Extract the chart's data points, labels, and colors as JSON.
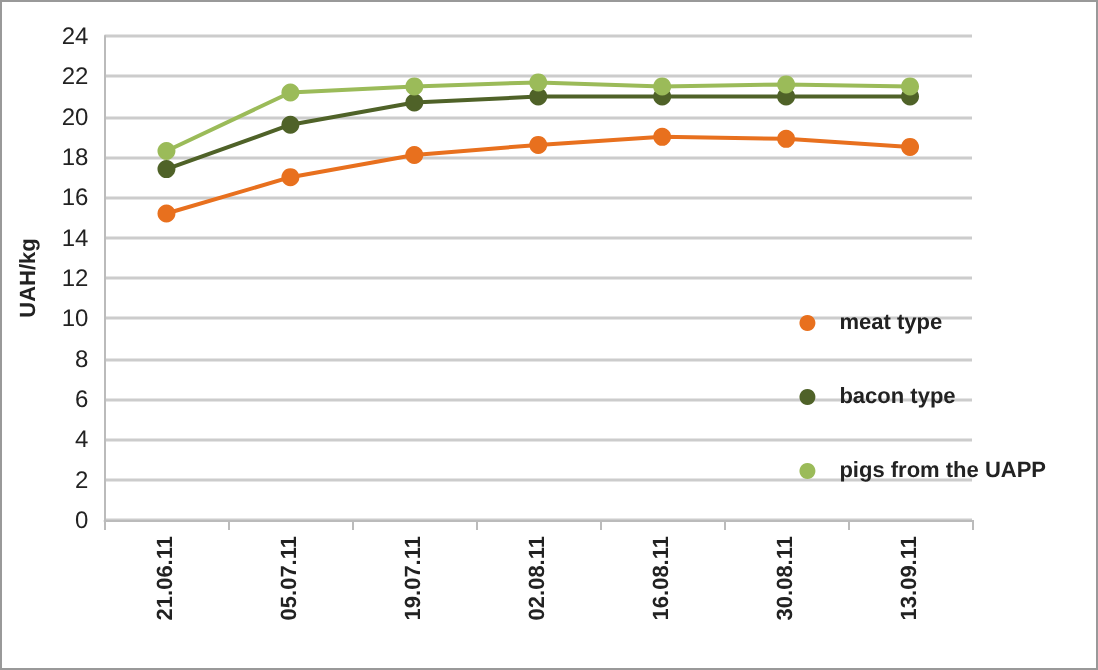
{
  "chart_data": {
    "type": "line",
    "ylabel": "UAH/kg",
    "categories": [
      "21.06.11",
      "05.07.11",
      "19.07.11",
      "02.08.11",
      "16.08.11",
      "30.08.11",
      "13.09.11"
    ],
    "series": [
      {
        "name": "meat type",
        "color": "#e8701e",
        "values": [
          15.2,
          17.0,
          18.1,
          18.6,
          19.0,
          18.9,
          18.5
        ]
      },
      {
        "name": "bacon type",
        "color": "#4f6228",
        "values": [
          17.4,
          19.6,
          20.7,
          21.0,
          21.0,
          21.0,
          21.0
        ]
      },
      {
        "name": "pigs from the UAPP",
        "color": "#9bbb59",
        "values": [
          18.3,
          21.2,
          21.5,
          21.7,
          21.5,
          21.6,
          21.5
        ]
      }
    ],
    "ylim": [
      0,
      24
    ],
    "yticks": [
      0,
      2,
      4,
      6,
      8,
      10,
      12,
      14,
      16,
      18,
      20,
      22,
      24
    ],
    "grid": "y",
    "legend": "right",
    "marker": "circle",
    "line_style": "solid"
  }
}
